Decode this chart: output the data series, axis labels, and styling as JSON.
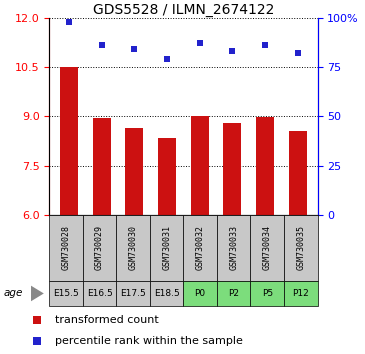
{
  "title": "GDS5528 / ILMN_2674122",
  "categories": [
    "GSM730028",
    "GSM730029",
    "GSM730030",
    "GSM730031",
    "GSM730032",
    "GSM730033",
    "GSM730034",
    "GSM730035"
  ],
  "age_labels": [
    "E15.5",
    "E16.5",
    "E17.5",
    "E18.5",
    "P0",
    "P2",
    "P5",
    "P12"
  ],
  "age_bg_colors": [
    "#c8c8c8",
    "#c8c8c8",
    "#c8c8c8",
    "#c8c8c8",
    "#7cdd7c",
    "#7cdd7c",
    "#7cdd7c",
    "#7cdd7c"
  ],
  "gsm_bg_color": "#c8c8c8",
  "bar_values": [
    10.5,
    8.95,
    8.65,
    8.35,
    9.02,
    8.8,
    8.97,
    8.55
  ],
  "percentile_values": [
    98,
    86,
    84,
    79,
    87,
    83,
    86,
    82
  ],
  "bar_color": "#cc1111",
  "dot_color": "#2222cc",
  "ylim_left": [
    6,
    12
  ],
  "ylim_right": [
    0,
    100
  ],
  "yticks_left": [
    6,
    7.5,
    9,
    10.5,
    12
  ],
  "yticks_right": [
    0,
    25,
    50,
    75,
    100
  ],
  "ytick_labels_right": [
    "0",
    "25",
    "50",
    "75",
    "100%"
  ],
  "legend_red_label": "transformed count",
  "legend_blue_label": "percentile rank within the sample",
  "age_label": "age"
}
